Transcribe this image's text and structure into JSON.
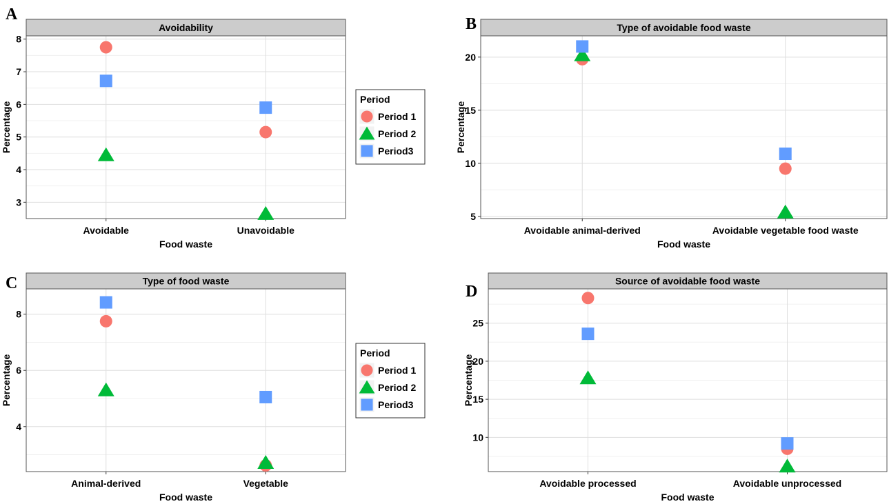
{
  "legend": {
    "title": "Period",
    "entries": [
      {
        "label": "Period 1",
        "shape": "circle",
        "color": "#F8766D"
      },
      {
        "label": "Period 2",
        "shape": "triangle",
        "color": "#00BA38"
      },
      {
        "label": "Period3",
        "shape": "square",
        "color": "#619CFF"
      }
    ]
  },
  "chart_data": [
    {
      "panel": "A",
      "type": "scatter",
      "title": "Avoidability",
      "xlabel": "Food waste",
      "ylabel": "Percentage",
      "categories": [
        "Avoidable",
        "Unavoidable"
      ],
      "ylim": [
        2.5,
        8.1
      ],
      "yticks": [
        3,
        4,
        5,
        6,
        7,
        8
      ],
      "grid": true,
      "series": [
        {
          "name": "Period 1",
          "values": [
            7.75,
            5.15
          ]
        },
        {
          "name": "Period 2",
          "values": [
            4.45,
            2.65
          ]
        },
        {
          "name": "Period3",
          "values": [
            6.72,
            5.9
          ]
        }
      ]
    },
    {
      "panel": "B",
      "type": "scatter",
      "title": "Type of avoidable food waste",
      "xlabel": "Food waste",
      "ylabel": "Percentage",
      "categories": [
        "Avoidable animal-derived",
        "Avoidable vegetable food waste"
      ],
      "ylim": [
        4.8,
        22.0
      ],
      "yticks": [
        5,
        10,
        15,
        20
      ],
      "grid": true,
      "series": [
        {
          "name": "Period 1",
          "values": [
            19.8,
            9.5
          ]
        },
        {
          "name": "Period 2",
          "values": [
            20.2,
            5.4
          ]
        },
        {
          "name": "Period3",
          "values": [
            21.0,
            10.9
          ]
        }
      ]
    },
    {
      "panel": "C",
      "type": "scatter",
      "title": "Type of food waste",
      "xlabel": "Food waste",
      "ylabel": "Percentage",
      "categories": [
        "Animal-derived",
        "Vegetable"
      ],
      "ylim": [
        2.4,
        8.9
      ],
      "yticks": [
        4,
        6,
        8
      ],
      "grid": true,
      "series": [
        {
          "name": "Period 1",
          "values": [
            7.75,
            2.62
          ]
        },
        {
          "name": "Period 2",
          "values": [
            5.3,
            2.72
          ]
        },
        {
          "name": "Period3",
          "values": [
            8.42,
            5.05
          ]
        }
      ]
    },
    {
      "panel": "D",
      "type": "scatter",
      "title": "Source of avoidable food waste",
      "xlabel": "Food waste",
      "ylabel": "Percentage",
      "categories": [
        "Avoidable processed",
        "Avoidable unprocessed"
      ],
      "ylim": [
        5.5,
        29.5
      ],
      "yticks": [
        10,
        15,
        20,
        25
      ],
      "grid": true,
      "series": [
        {
          "name": "Period 1",
          "values": [
            28.3,
            8.5
          ]
        },
        {
          "name": "Period 2",
          "values": [
            17.8,
            6.2
          ]
        },
        {
          "name": "Period3",
          "values": [
            23.6,
            9.2
          ]
        }
      ]
    }
  ]
}
